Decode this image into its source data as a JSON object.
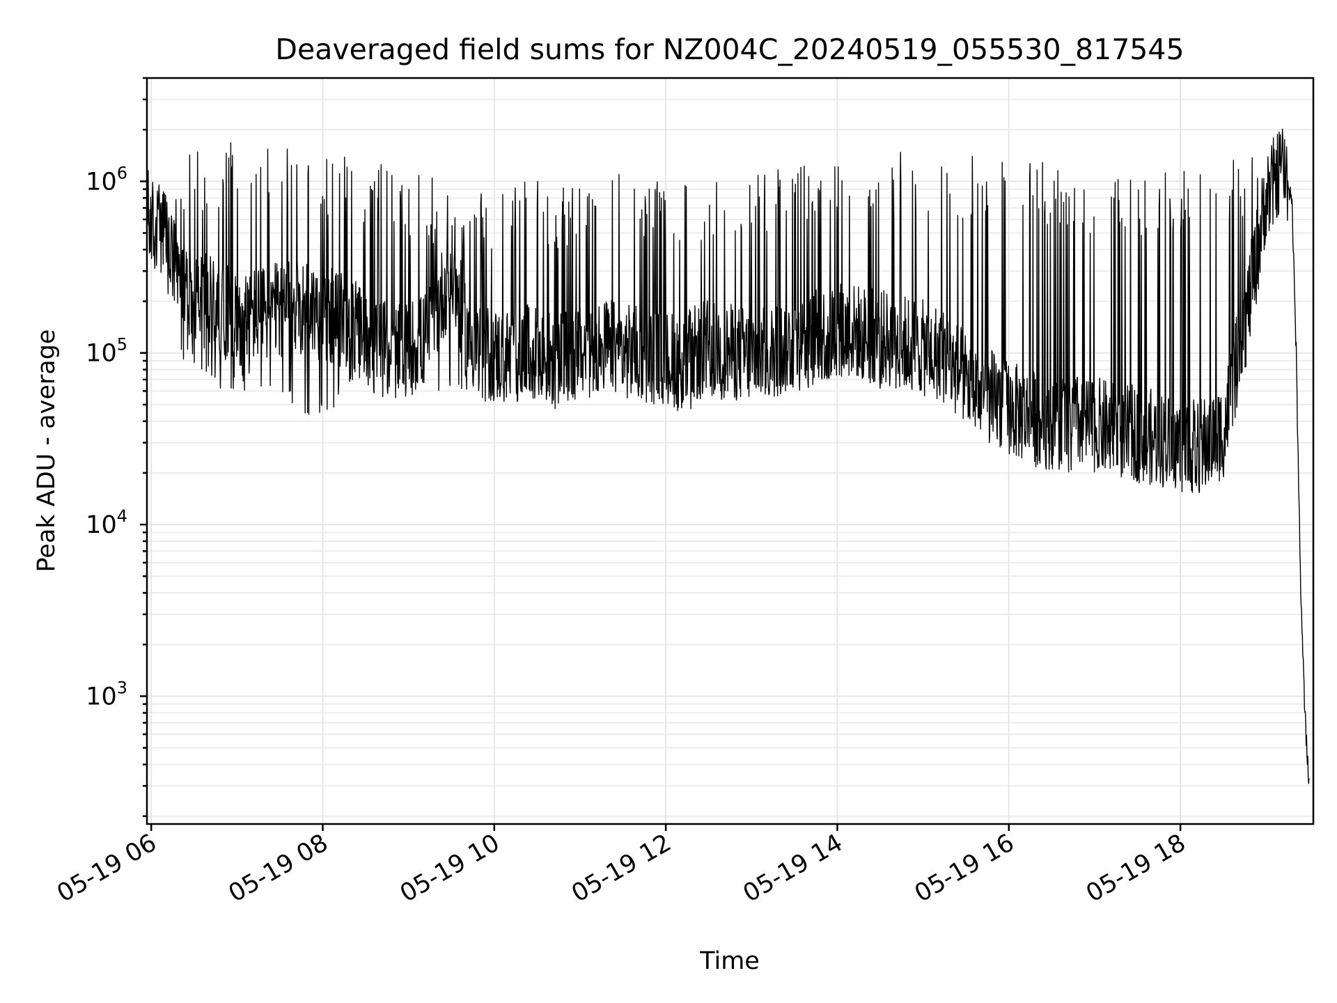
{
  "chart_data": {
    "type": "line",
    "title": "Deaveraged field sums for NZ004C_20240519_055530_817545",
    "xlabel": "Time",
    "ylabel": "Peak ADU - average",
    "yscale": "log",
    "grid": true,
    "xlim": [
      "05-19 05:57",
      "05-19 19:33"
    ],
    "ylim": [
      180,
      4000000
    ],
    "x_ticks": [
      {
        "label": "05-19 06",
        "hour": 6
      },
      {
        "label": "05-19 08",
        "hour": 8
      },
      {
        "label": "05-19 10",
        "hour": 10
      },
      {
        "label": "05-19 12",
        "hour": 12
      },
      {
        "label": "05-19 14",
        "hour": 14
      },
      {
        "label": "05-19 16",
        "hour": 16
      },
      {
        "label": "05-19 18",
        "hour": 18
      }
    ],
    "y_ticks": [
      {
        "base": "10",
        "exp": "3",
        "value": 1000
      },
      {
        "base": "10",
        "exp": "4",
        "value": 10000
      },
      {
        "base": "10",
        "exp": "5",
        "value": 100000
      },
      {
        "base": "10",
        "exp": "6",
        "value": 1000000
      }
    ],
    "line_color": "#000000",
    "series": [
      {
        "x_hours": [
          5.95,
          6.0,
          6.2,
          6.3,
          6.5,
          6.8,
          7.0,
          7.3,
          7.6,
          7.8,
          8.0,
          8.3,
          8.6,
          8.9,
          9.2,
          9.5,
          9.7,
          9.9,
          10.1,
          10.4,
          10.7,
          11.0,
          11.3,
          11.6,
          11.9,
          12.2,
          12.5,
          12.8,
          13.1,
          13.4,
          13.7,
          14.0,
          14.3,
          14.6,
          14.9,
          15.2,
          15.5,
          15.8,
          16.1,
          16.4,
          16.7,
          17.0,
          17.3,
          17.6,
          17.9,
          18.2,
          18.5,
          18.8,
          19.0,
          19.2,
          19.3,
          19.35,
          19.4,
          19.45,
          19.5
        ],
        "baseline": [
          650000,
          550000,
          450000,
          260000,
          220000,
          180000,
          160000,
          170000,
          180000,
          190000,
          170000,
          150000,
          110000,
          100000,
          120000,
          300000,
          120000,
          100000,
          95000,
          100000,
          90000,
          100000,
          110000,
          100000,
          95000,
          90000,
          110000,
          100000,
          95000,
          110000,
          120000,
          140000,
          130000,
          120000,
          110000,
          100000,
          70000,
          55000,
          45000,
          40000,
          40000,
          38000,
          35000,
          33000,
          30000,
          28000,
          35000,
          200000,
          800000,
          1200000,
          800000,
          100000,
          5000,
          800,
          300
        ],
        "lows": [
          520000,
          450000,
          200000,
          100000,
          80000,
          60000,
          60000,
          60000,
          50000,
          40000,
          40000,
          60000,
          60000,
          55000,
          55000,
          60000,
          60000,
          50000,
          50000,
          50000,
          55000,
          55000,
          60000,
          55000,
          50000,
          45000,
          50000,
          55000,
          55000,
          60000,
          65000,
          70000,
          65000,
          60000,
          60000,
          55000,
          40000,
          30000,
          22000,
          20000,
          20000,
          22000,
          20000,
          18000,
          17000,
          15000,
          20000,
          100000,
          600000,
          900000,
          600000,
          60000,
          3500,
          600,
          280
        ],
        "peaks": [
          1000000,
          900000,
          1200000,
          1500000,
          1600000,
          1700000,
          1800000,
          1900000,
          1800000,
          1600000,
          1500000,
          1400000,
          1300000,
          1200000,
          1100000,
          1000000,
          1000000,
          950000,
          950000,
          1000000,
          1000000,
          1000000,
          1100000,
          1100000,
          1050000,
          1050000,
          1100000,
          1150000,
          1200000,
          1300000,
          1400000,
          1450000,
          1450000,
          1500000,
          1500000,
          1500000,
          1450000,
          1400000,
          1350000,
          1300000,
          1250000,
          1200000,
          1150000,
          1150000,
          1150000,
          1200000,
          1300000,
          1600000,
          1900000,
          2000000,
          1200000,
          150000,
          6000,
          1000,
          350
        ]
      }
    ]
  }
}
